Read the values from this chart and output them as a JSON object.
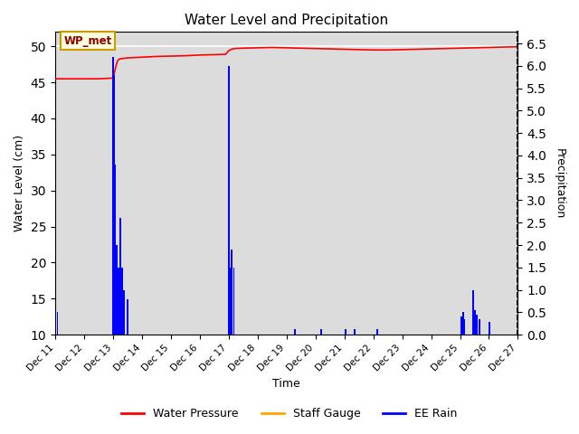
{
  "title": "Water Level and Precipitation",
  "xlabel": "Time",
  "ylabel_left": "Water Level (cm)",
  "ylabel_right": "Precipitation",
  "annotation_label": "WP_met",
  "legend_labels": [
    "Water Pressure",
    "Staff Gauge",
    "EE Rain"
  ],
  "legend_colors": [
    "red",
    "orange",
    "blue"
  ],
  "ylim_left": [
    10,
    52
  ],
  "ylim_right": [
    0.0,
    6.756
  ],
  "background_color": "#dcdcdc",
  "figure_background": "#ffffff",
  "yticks_left": [
    10,
    15,
    20,
    25,
    30,
    35,
    40,
    45,
    50
  ],
  "yticks_right": [
    0.0,
    0.5,
    1.0,
    1.5,
    2.0,
    2.5,
    3.0,
    3.5,
    4.0,
    4.5,
    5.0,
    5.5,
    6.0,
    6.5
  ],
  "xlim": [
    0,
    16
  ],
  "xtick_labels": [
    "Dec 11",
    "Dec 12",
    "Dec 13",
    "Dec 14",
    "Dec 15",
    "Dec 16",
    "Dec 17",
    "Dec 18",
    "Dec 19",
    "Dec 20",
    "Dec 21",
    "Dec 22",
    "Dec 23",
    "Dec 24",
    "Dec 25",
    "Dec 26",
    "Dec 27"
  ],
  "wp_x": [
    0,
    0.5,
    1.0,
    1.5,
    2.0,
    2.05,
    2.1,
    2.15,
    2.2,
    2.3,
    2.5,
    3.0,
    3.5,
    4.0,
    4.5,
    5.0,
    5.5,
    5.9,
    6.0,
    6.1,
    6.2,
    6.5,
    7.0,
    7.5,
    8.0,
    8.5,
    9.0,
    9.5,
    10.0,
    10.5,
    11.0,
    11.5,
    12.0,
    12.5,
    13.0,
    13.5,
    14.0,
    14.5,
    15.0,
    15.5,
    16.0
  ],
  "wp_y": [
    45.5,
    45.5,
    45.5,
    45.5,
    45.6,
    46.3,
    47.2,
    47.9,
    48.2,
    48.3,
    48.4,
    48.5,
    48.6,
    48.65,
    48.7,
    48.8,
    48.85,
    48.9,
    49.4,
    49.6,
    49.7,
    49.75,
    49.8,
    49.85,
    49.8,
    49.75,
    49.7,
    49.65,
    49.6,
    49.55,
    49.5,
    49.5,
    49.55,
    49.6,
    49.65,
    49.7,
    49.75,
    49.8,
    49.85,
    49.9,
    49.95
  ],
  "rain_x": [
    0.08,
    2.0,
    2.05,
    2.08,
    2.12,
    2.18,
    2.25,
    2.32,
    2.38,
    2.5,
    6.0,
    6.05,
    6.1,
    6.18,
    8.3,
    9.2,
    10.05,
    10.35,
    11.15,
    14.05,
    14.1,
    14.15,
    14.45,
    14.52,
    14.58,
    14.68,
    15.02
  ],
  "rain_h": [
    0.5,
    6.2,
    5.8,
    3.8,
    2.0,
    1.5,
    2.6,
    1.5,
    1.0,
    0.8,
    6.0,
    1.5,
    1.9,
    1.5,
    0.12,
    0.12,
    0.12,
    0.12,
    0.12,
    0.4,
    0.5,
    0.35,
    1.0,
    0.55,
    0.45,
    0.35,
    0.28
  ]
}
